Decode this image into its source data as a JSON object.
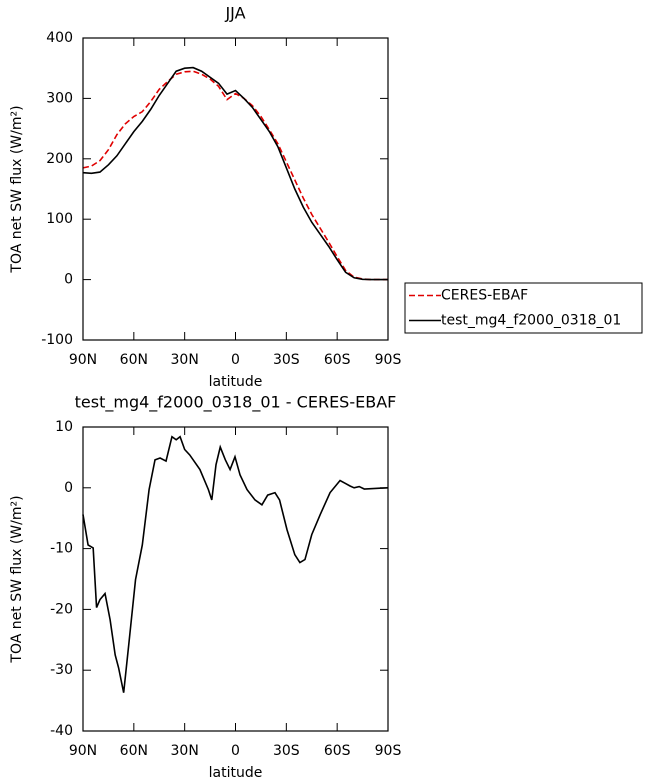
{
  "chart_data": [
    {
      "type": "line",
      "title": "JJA",
      "xlabel": "latitude",
      "ylabel": "TOA net SW flux (W/m²)",
      "x": [
        90,
        85,
        80,
        75,
        70,
        65,
        60,
        55,
        50,
        45,
        40,
        35,
        30,
        25,
        20,
        15,
        10,
        5,
        0,
        -5,
        -10,
        -15,
        -20,
        -25,
        -30,
        -35,
        -40,
        -45,
        -50,
        -55,
        -60,
        -65,
        -70,
        -75,
        -80,
        -85,
        -90
      ],
      "series": [
        {
          "name": "CERES-EBAF",
          "color": "#e00000",
          "dash": true,
          "values": [
            185,
            188,
            197,
            215,
            240,
            258,
            270,
            278,
            295,
            315,
            328,
            340,
            344,
            345,
            340,
            332,
            320,
            298,
            308,
            300,
            288,
            270,
            248,
            225,
            195,
            165,
            135,
            108,
            85,
            62,
            38,
            15,
            4,
            1,
            0,
            0,
            0
          ]
        },
        {
          "name": "test_mg4_f2000_0318_01",
          "color": "#000000",
          "dash": false,
          "values": [
            177,
            176,
            178,
            190,
            205,
            225,
            245,
            262,
            282,
            305,
            325,
            345,
            350,
            351,
            345,
            335,
            325,
            307,
            313,
            300,
            285,
            265,
            245,
            220,
            185,
            150,
            120,
            95,
            75,
            55,
            33,
            12,
            3,
            0.5,
            0,
            0,
            0
          ]
        }
      ],
      "xlim": [
        90,
        -90
      ],
      "xticks": [
        {
          "value": 90,
          "label": "90N"
        },
        {
          "value": 60,
          "label": "60N"
        },
        {
          "value": 30,
          "label": "30N"
        },
        0,
        {
          "value": -30,
          "label": "30S"
        },
        {
          "value": -60,
          "label": "60S"
        },
        {
          "value": -90,
          "label": "90S"
        }
      ],
      "ylim": [
        -100,
        400
      ],
      "yticks": [
        -100,
        0,
        100,
        200,
        300,
        400
      ],
      "legend": "outside-right"
    },
    {
      "type": "line",
      "title": "test_mg4_f2000_0318_01 - CERES-EBAF",
      "xlabel": "latitude",
      "ylabel": "TOA net SW flux (W/m²)",
      "x": [
        90,
        87,
        84,
        82,
        80,
        77,
        74,
        71,
        69,
        66,
        63,
        59,
        55,
        51,
        47.5,
        44.5,
        41,
        37.5,
        35,
        32.7,
        30,
        27,
        21,
        16,
        14,
        11.5,
        9,
        6,
        3.2,
        0.3,
        -2.7,
        -6.8,
        -11.5,
        -15.6,
        -19,
        -23.3,
        -26,
        -30.4,
        -35,
        -38,
        -41,
        -45,
        -50,
        -55.8,
        -61.7,
        -65,
        -67.6,
        -70,
        -73,
        -76,
        -90
      ],
      "series": [
        {
          "color": "#000000",
          "dash": false,
          "values": [
            -4.4,
            -9.4,
            -9.9,
            -19.7,
            -18.4,
            -17.4,
            -21.7,
            -27.5,
            -29.6,
            -33.7,
            -25.8,
            -15.1,
            -9.4,
            -0.3,
            4.6,
            4.9,
            4.4,
            8.4,
            7.9,
            8.4,
            6.3,
            5.4,
            3,
            -0.3,
            -2,
            3.8,
            6.7,
            4.6,
            3,
            5.1,
            2.1,
            -0.3,
            -2,
            -2.8,
            -1.2,
            -0.8,
            -2,
            -6.9,
            -11,
            -12.3,
            -11.8,
            -7.7,
            -4.4,
            -0.8,
            1.2,
            0.7,
            0.3,
            0,
            0.2,
            -0.2,
            0
          ]
        }
      ],
      "xlim": [
        90,
        -90
      ],
      "xticks": [
        {
          "value": 90,
          "label": "90N"
        },
        {
          "value": 60,
          "label": "60N"
        },
        {
          "value": 30,
          "label": "30N"
        },
        0,
        {
          "value": -30,
          "label": "30S"
        },
        {
          "value": -60,
          "label": "60S"
        },
        {
          "value": -90,
          "label": "90S"
        }
      ],
      "ylim": [
        -40,
        10
      ],
      "yticks": [
        -40,
        -30,
        -20,
        -10,
        0,
        10
      ]
    }
  ]
}
